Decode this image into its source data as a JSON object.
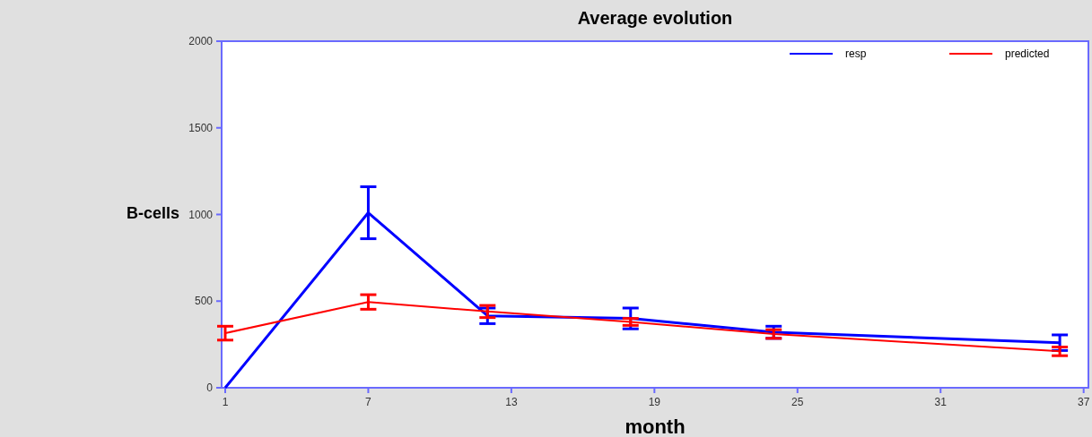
{
  "chart_data": {
    "type": "line",
    "title": "Average evolution",
    "xlabel": "month",
    "ylabel": "B-cells",
    "xlim": [
      0.85,
      37.2
    ],
    "xticks": [
      1,
      7,
      13,
      19,
      25,
      31,
      37
    ],
    "ylim": [
      0,
      2000
    ],
    "yticks": [
      0,
      500,
      1000,
      1500,
      2000
    ],
    "legend": "top right",
    "grid": false,
    "marker": "none",
    "line_style": "solid",
    "series": [
      {
        "name": "resp",
        "color": "#0000ff",
        "x": [
          1,
          7,
          12,
          18,
          24,
          36
        ],
        "values": [
          0,
          1010,
          415,
          400,
          320,
          260
        ],
        "errors": [
          null,
          150,
          45,
          60,
          35,
          45
        ]
      },
      {
        "name": "predicted",
        "color": "#ff0000",
        "x": [
          1,
          7,
          12,
          18,
          24,
          36
        ],
        "values": [
          315,
          495,
          440,
          380,
          310,
          210
        ],
        "errors": [
          40,
          42,
          35,
          20,
          25,
          25
        ]
      }
    ]
  }
}
